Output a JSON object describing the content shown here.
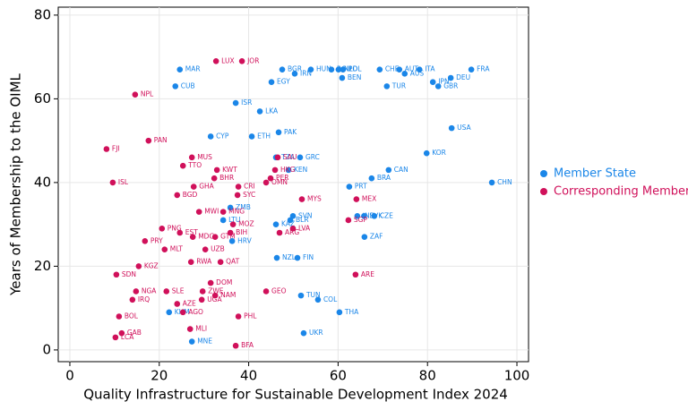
{
  "chart_data": {
    "type": "scatter",
    "x_label": "Quality Infrastructure for Sustainable Development Index 2024",
    "y_label": "Years of Membership to the OIML",
    "xlim": [
      -2.6,
      102.6
    ],
    "ylim": [
      -2.8,
      81.9
    ],
    "xticks": [
      0,
      20,
      40,
      60,
      80,
      100
    ],
    "yticks": [
      0,
      20,
      40,
      60,
      80
    ],
    "grid": true,
    "legend": "right",
    "series": [
      {
        "name": "Member State",
        "color": "#1a86e8",
        "labels": [
          "MAR",
          "CUB",
          "BGR",
          "IRN",
          "HUN",
          "ROU",
          "NLD",
          "POL",
          "BEN",
          "CHE",
          "AUT",
          "AUS",
          "ITA",
          "FRA",
          "DEU",
          "JPN",
          "GBR",
          "TUR",
          "EGY",
          "ISR",
          "LKA",
          "USA",
          "PAK",
          "CYP",
          "ETH",
          "KOR",
          "GRC",
          "TZA",
          "KEN",
          "CAN",
          "BRA",
          "CHN",
          "PRT",
          "ZMB",
          "SVN",
          "BLR",
          "IND",
          "SVK",
          "CZE",
          "KAZ",
          "ZAF",
          "HRV",
          "LTU",
          "NZL",
          "FIN",
          "TUN",
          "COL",
          "THA",
          "KHM",
          "UKR",
          "MNE"
        ],
        "x": [
          24.6,
          23.6,
          47.5,
          50.3,
          53.9,
          58.5,
          60.1,
          61.1,
          60.9,
          69.3,
          73.7,
          74.9,
          78.2,
          89.8,
          85.2,
          81.2,
          82.4,
          70.9,
          45.1,
          37.1,
          42.5,
          85.4,
          46.7,
          31.5,
          40.7,
          79.8,
          51.5,
          46.1,
          48.9,
          71.3,
          67.5,
          94.4,
          62.5,
          35.9,
          49.9,
          49.3,
          64.3,
          65.8,
          68.1,
          46.1,
          65.9,
          36.3,
          34.3,
          46.3,
          50.9,
          51.7,
          55.5,
          60.3,
          22.2,
          52.3,
          27.3
        ],
        "values": [
          67,
          63,
          67,
          66,
          67,
          67,
          67,
          67,
          65,
          67,
          67,
          66,
          67,
          67,
          65,
          64,
          63,
          63,
          64,
          59,
          57,
          53,
          52,
          51,
          51,
          47,
          46,
          46,
          43,
          43,
          41,
          40,
          39,
          34,
          32,
          31,
          32,
          32,
          32,
          30,
          27,
          26,
          31,
          22,
          22,
          13,
          12,
          9,
          9,
          4,
          2
        ]
      },
      {
        "name": "Corresponding Member",
        "color": "#d0105a",
        "labels": [
          "LUX",
          "JOR",
          "NPL",
          "PAN",
          "FJI",
          "MUS",
          "TTO",
          "KWT",
          "HKG",
          "SAU",
          "BHR",
          "PER",
          "OMN",
          "ISL",
          "CRI",
          "GHA",
          "SYC",
          "BGD",
          "MYS",
          "MEX",
          "MWI",
          "MNG",
          "SGP",
          "MOZ",
          "PNG",
          "EST",
          "LVA",
          "ARG",
          "BIH",
          "MDG",
          "GTM",
          "PRY",
          "MLT",
          "UZB",
          "RWA",
          "QAT",
          "KGZ",
          "SDN",
          "ARE",
          "DOM",
          "NGA",
          "SLE",
          "ZWE",
          "GEO",
          "NAM",
          "IRQ",
          "UGA",
          "AZE",
          "AGO",
          "BOL",
          "PHL",
          "MLI",
          "GAB",
          "LCA",
          "BFA"
        ],
        "x": [
          32.7,
          38.5,
          14.6,
          17.6,
          8.2,
          27.3,
          25.3,
          32.9,
          45.9,
          46.5,
          32.3,
          44.9,
          43.9,
          9.6,
          37.7,
          27.7,
          37.5,
          24.0,
          51.9,
          64.1,
          28.9,
          34.3,
          62.3,
          36.5,
          20.6,
          24.6,
          49.9,
          46.9,
          35.9,
          27.5,
          32.5,
          16.8,
          21.2,
          30.3,
          27.1,
          33.7,
          15.4,
          10.4,
          63.9,
          31.5,
          14.8,
          21.6,
          29.7,
          43.9,
          32.5,
          14.0,
          29.5,
          24.0,
          25.3,
          11.0,
          37.7,
          26.9,
          11.6,
          10.2,
          37.1
        ],
        "values": [
          69,
          69,
          61,
          50,
          48,
          46,
          44,
          43,
          43,
          46,
          41,
          41,
          40,
          40,
          39,
          39,
          37,
          37,
          36,
          36,
          33,
          33,
          31,
          30,
          29,
          28,
          29,
          28,
          28,
          27,
          27,
          26,
          24,
          24,
          21,
          21,
          20,
          18,
          18,
          16,
          14,
          14,
          14,
          14,
          13,
          12,
          12,
          11,
          9,
          8,
          8,
          5,
          4,
          3,
          1
        ]
      }
    ]
  }
}
